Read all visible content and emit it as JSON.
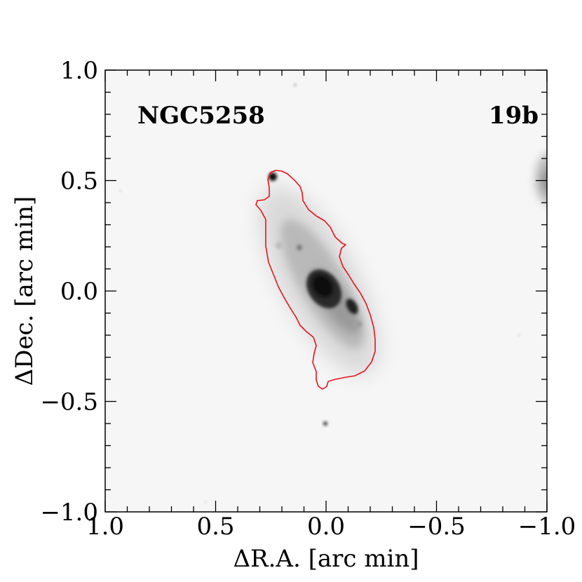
{
  "plot": {
    "galaxy_name": "NGC5258",
    "panel_id": "19b",
    "xlabel": "ΔR.A. [arc min]",
    "ylabel": "ΔDec. [arc min]",
    "xlim": [
      1.0,
      -1.0
    ],
    "ylim": [
      -1.0,
      1.0
    ],
    "x_ticks": [
      {
        "value": 1.0,
        "label": "1.0"
      },
      {
        "value": 0.5,
        "label": "0.5"
      },
      {
        "value": 0.0,
        "label": "0.0"
      },
      {
        "value": -0.5,
        "label": "−0.5"
      },
      {
        "value": -1.0,
        "label": "−1.0"
      }
    ],
    "y_ticks": [
      {
        "value": 1.0,
        "label": "1.0"
      },
      {
        "value": 0.5,
        "label": "0.5"
      },
      {
        "value": 0.0,
        "label": "0.0"
      },
      {
        "value": -0.5,
        "label": "−0.5"
      },
      {
        "value": -1.0,
        "label": "−1.0"
      }
    ],
    "minor_tick_step": 0.1,
    "contour_color": "#e8121b",
    "image_colormap": "grayscale-inverted"
  }
}
